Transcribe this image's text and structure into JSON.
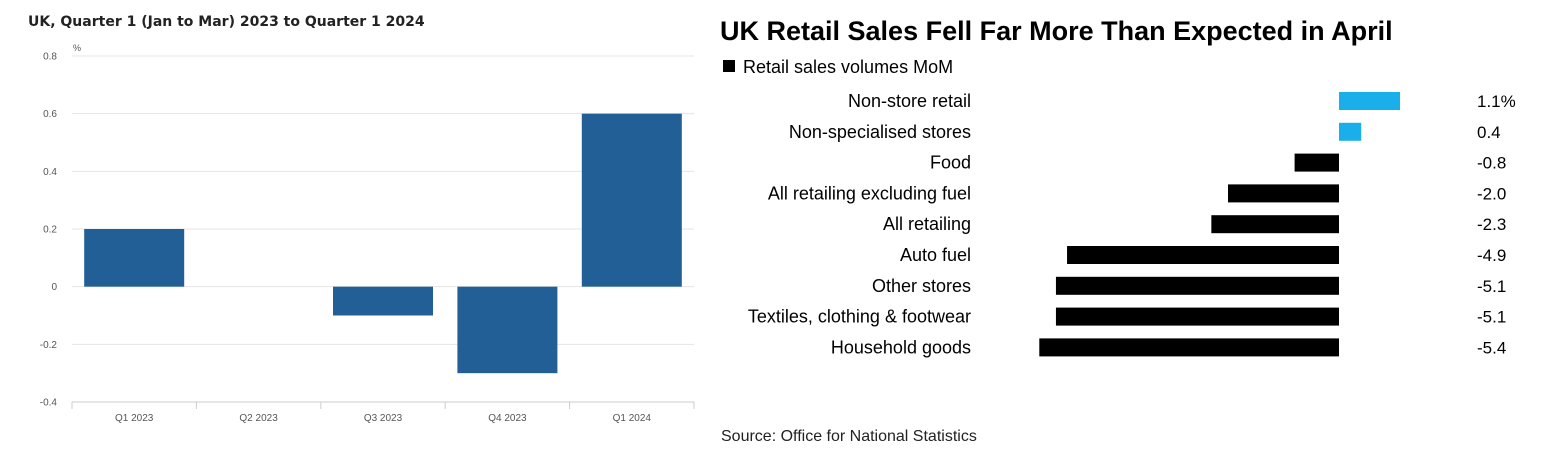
{
  "left_chart": {
    "title": "UK, Quarter 1 (Jan to Mar) 2023 to Quarter 1 2024",
    "unit_label": "%",
    "bar_color": "#215f96",
    "chart_data": {
      "type": "bar",
      "title": "UK, Quarter 1 (Jan to Mar) 2023 to Quarter 1 2024",
      "categories": [
        "Q1 2023",
        "Q2 2023",
        "Q3 2023",
        "Q4 2023",
        "Q1 2024"
      ],
      "values": [
        0.2,
        0.0,
        -0.1,
        -0.3,
        0.6
      ],
      "ylabel": "%",
      "xlabel": "",
      "ylim": [
        -0.4,
        0.8
      ],
      "yticks": [
        -0.4,
        -0.2,
        0,
        0.2,
        0.4,
        0.6,
        0.8
      ],
      "ytick_labels": [
        "-0.4",
        "-0.2",
        "0",
        "0.2",
        "0.4",
        "0.6",
        "0.8"
      ],
      "grid": true
    }
  },
  "right_chart": {
    "title": "UK Retail Sales Fell Far More Than Expected in April",
    "source": "Source: Office for National Statistics",
    "positive_color": "#1aaeea",
    "negative_color": "#000000",
    "chart_data": {
      "type": "bar",
      "orientation": "horizontal",
      "title": "UK Retail Sales Fell Far More Than Expected in April",
      "legend": [
        "Retail sales volumes MoM"
      ],
      "categories": [
        "Non-store retail",
        "Non-specialised stores",
        "Food",
        "All retailing excluding fuel",
        "All retailing",
        "Auto fuel",
        "Other stores",
        "Textiles, clothing & footwear",
        "Household goods"
      ],
      "values": [
        1.1,
        0.4,
        -0.8,
        -2.0,
        -2.3,
        -4.9,
        -5.1,
        -5.1,
        -5.4
      ],
      "value_labels": [
        "1.1%",
        "0.4",
        "-0.8",
        "-2.0",
        "-2.3",
        "-4.9",
        "-5.1",
        "-5.1",
        "-5.4"
      ],
      "source": "Source: Office for National Statistics"
    }
  }
}
